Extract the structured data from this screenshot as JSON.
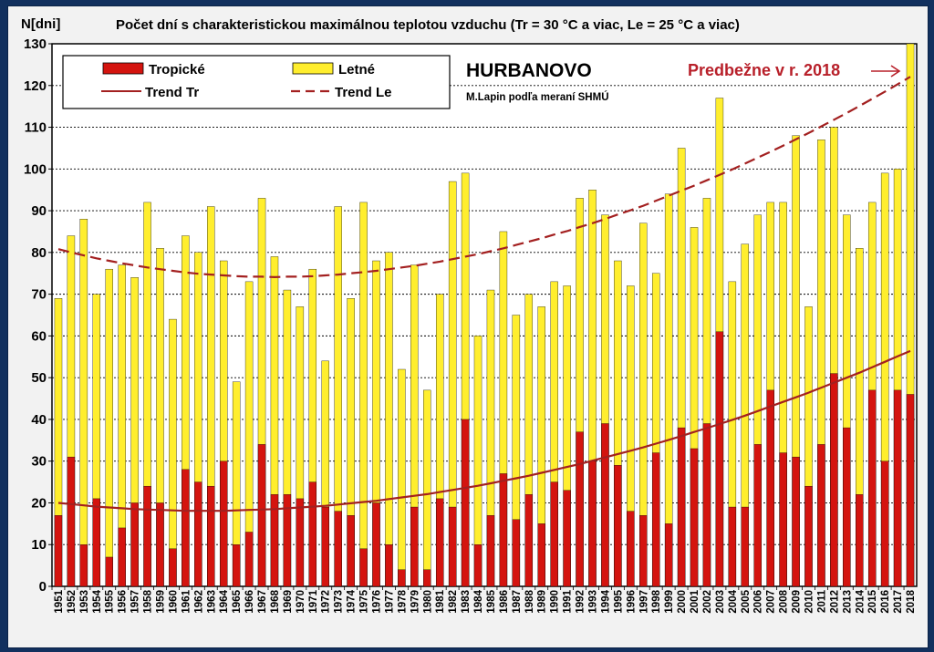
{
  "chart_data": {
    "type": "bar",
    "title": "Počet dní s charakteristickou maximálnou teplotou vzduchu (Tr = 30 °C a viac, Le = 25 °C a viac)",
    "ylabel": "N[dni]",
    "ylim": [
      0,
      130
    ],
    "yticks": [
      0,
      10,
      20,
      30,
      40,
      50,
      60,
      70,
      80,
      90,
      100,
      110,
      120,
      130
    ],
    "grid": true,
    "legend_position": "top-left",
    "station": "HURBANOVO",
    "author": "M.Lapin podľa meraní SHMÚ",
    "note": "Predbežne v r. 2018",
    "categories": [
      "1951",
      "1952",
      "1953",
      "1954",
      "1955",
      "1956",
      "1957",
      "1958",
      "1959",
      "1960",
      "1961",
      "1962",
      "1963",
      "1964",
      "1965",
      "1966",
      "1967",
      "1968",
      "1969",
      "1970",
      "1971",
      "1972",
      "1973",
      "1974",
      "1975",
      "1976",
      "1977",
      "1978",
      "1979",
      "1980",
      "1981",
      "1982",
      "1983",
      "1984",
      "1985",
      "1986",
      "1987",
      "1988",
      "1989",
      "1990",
      "1991",
      "1992",
      "1993",
      "1994",
      "1995",
      "1996",
      "1997",
      "1998",
      "1999",
      "2000",
      "2001",
      "2002",
      "2003",
      "2004",
      "2005",
      "2006",
      "2007",
      "2008",
      "2009",
      "2010",
      "2011",
      "2012",
      "2013",
      "2014",
      "2015",
      "2016",
      "2017",
      "2018"
    ],
    "series": [
      {
        "name": "Tropické",
        "color": "#d4140f",
        "values": [
          17,
          31,
          10,
          21,
          7,
          14,
          20,
          24,
          20,
          9,
          28,
          25,
          24,
          30,
          10,
          13,
          34,
          22,
          22,
          21,
          25,
          19,
          18,
          17,
          9,
          20,
          10,
          4,
          19,
          4,
          21,
          19,
          40,
          10,
          17,
          27,
          16,
          22,
          15,
          25,
          23,
          37,
          30,
          39,
          29,
          18,
          17,
          32,
          15,
          38,
          33,
          39,
          61,
          19,
          19,
          34,
          47,
          32,
          31,
          24,
          34,
          51,
          38,
          22,
          47,
          30,
          47,
          46
        ]
      },
      {
        "name": "Letné",
        "color": "#ffee2e",
        "values": [
          69,
          84,
          88,
          70,
          76,
          77,
          74,
          92,
          81,
          64,
          84,
          80,
          91,
          78,
          49,
          73,
          93,
          79,
          71,
          67,
          76,
          54,
          91,
          69,
          92,
          78,
          80,
          52,
          77,
          47,
          70,
          97,
          99,
          60,
          71,
          85,
          65,
          70,
          67,
          73,
          72,
          93,
          95,
          89,
          78,
          72,
          87,
          75,
          94,
          105,
          86,
          93,
          117,
          73,
          82,
          89,
          92,
          92,
          108,
          67,
          107,
          110,
          89,
          81,
          92,
          99,
          100,
          130
        ]
      },
      {
        "name": "Trend Tr",
        "color": "#a32020",
        "style": "solid",
        "values": [
          20.0,
          19.7,
          19.4,
          19.1,
          18.9,
          18.7,
          18.5,
          18.4,
          18.3,
          18.2,
          18.1,
          18.1,
          18.1,
          18.1,
          18.2,
          18.3,
          18.4,
          18.5,
          18.7,
          18.9,
          19.1,
          19.3,
          19.6,
          19.9,
          20.2,
          20.5,
          20.9,
          21.3,
          21.7,
          22.1,
          22.6,
          23.1,
          23.6,
          24.1,
          24.7,
          25.3,
          25.9,
          26.5,
          27.2,
          27.9,
          28.6,
          29.3,
          30.1,
          30.9,
          31.7,
          32.5,
          33.3,
          34.2,
          35.1,
          36.0,
          37.0,
          37.9,
          38.9,
          39.9,
          40.9,
          42.0,
          43.1,
          44.2,
          45.3,
          46.4,
          47.6,
          48.8,
          50.0,
          51.2,
          52.5,
          53.8,
          55.1,
          56.4
        ]
      },
      {
        "name": "Trend Le",
        "color": "#a32020",
        "style": "dashed",
        "values": [
          80.8,
          80.0,
          79.3,
          78.6,
          78.0,
          77.4,
          76.9,
          76.4,
          76.0,
          75.6,
          75.2,
          74.9,
          74.7,
          74.5,
          74.3,
          74.2,
          74.2,
          74.1,
          74.2,
          74.2,
          74.3,
          74.5,
          74.7,
          75.0,
          75.3,
          75.6,
          76.0,
          76.4,
          76.8,
          77.3,
          77.8,
          78.4,
          79.0,
          79.6,
          80.3,
          81.0,
          81.8,
          82.6,
          83.4,
          84.3,
          85.1,
          86.1,
          87.0,
          88.0,
          89.1,
          90.1,
          91.2,
          92.4,
          93.6,
          94.8,
          96.0,
          97.3,
          98.6,
          99.9,
          101.3,
          102.7,
          104.1,
          105.6,
          107.1,
          108.6,
          110.2,
          111.8,
          113.4,
          115.1,
          116.8,
          118.5,
          120.3,
          122.1
        ]
      }
    ]
  }
}
